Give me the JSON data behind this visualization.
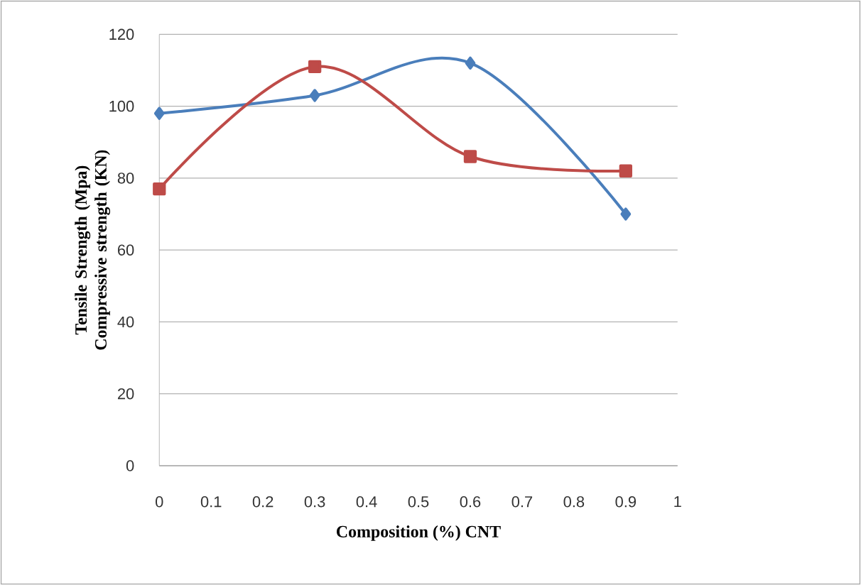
{
  "chart_data": {
    "type": "line",
    "xlabel": "Composition (%) CNT",
    "ylabel": "Tensile Strength (Mpa) Compressive strength (KN)",
    "x": [
      0,
      0.3,
      0.6,
      0.9
    ],
    "series": [
      {
        "color": "#4a7ebb",
        "marker": "diamond",
        "values": [
          98,
          103,
          112,
          70
        ]
      },
      {
        "color": "#be4b48",
        "marker": "square",
        "values": [
          77,
          111,
          86,
          82
        ]
      }
    ],
    "xlim": [
      0,
      1
    ],
    "xticks": [
      0,
      0.1,
      0.2,
      0.3,
      0.4,
      0.5,
      0.6,
      0.7,
      0.8,
      0.9,
      1
    ],
    "ylim": [
      0,
      120
    ],
    "yticks": [
      0,
      20,
      40,
      60,
      80,
      100,
      120
    ],
    "grid": "y"
  }
}
